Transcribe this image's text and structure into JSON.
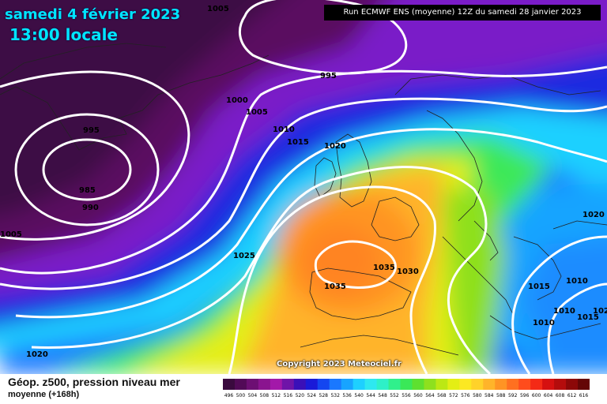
{
  "header": {
    "date": "samedi 4 février 2023",
    "time": "13:00 locale",
    "run": "Run ECMWF ENS (moyenne) 12Z du samedi 28 janvier 2023"
  },
  "footer": {
    "title": "Géop. z500, pression niveau mer",
    "subtitle": "moyenne   (+168h)",
    "copyright": "Copyright 2023 Meteociel.fr"
  },
  "isobar_labels": [
    "1005",
    "995",
    "1000",
    "1005",
    "1010",
    "1015",
    "1020",
    "995",
    "985",
    "990",
    "1005",
    "1025",
    "1035",
    "1030",
    "1035",
    "1020",
    "1015",
    "1010",
    "1010",
    "1010",
    "1015",
    "1020",
    "1020"
  ],
  "colorbar": {
    "ticks": [
      "496",
      "500",
      "504",
      "508",
      "512",
      "516",
      "520",
      "524",
      "528",
      "532",
      "536",
      "540",
      "544",
      "548",
      "552",
      "556",
      "560",
      "564",
      "568",
      "572",
      "576",
      "580",
      "584",
      "588",
      "592",
      "596",
      "600",
      "604",
      "608",
      "612",
      "616"
    ],
    "colors": [
      "#3a0a3e",
      "#520a57",
      "#6d0f73",
      "#8a148f",
      "#a318a9",
      "#6f14a8",
      "#3a10b8",
      "#1a1ad8",
      "#1446f0",
      "#1a78ff",
      "#18a4ff",
      "#1ed0ff",
      "#2ee8f0",
      "#2ef0c8",
      "#30f08c",
      "#3ae858",
      "#5ee030",
      "#8ee01e",
      "#bce814",
      "#e4ee14",
      "#fce822",
      "#ffd22a",
      "#ffb42a",
      "#ff9424",
      "#ff7020",
      "#ff4c1c",
      "#f42a16",
      "#d61010",
      "#b40c0c",
      "#8c0808",
      "#640606"
    ]
  }
}
